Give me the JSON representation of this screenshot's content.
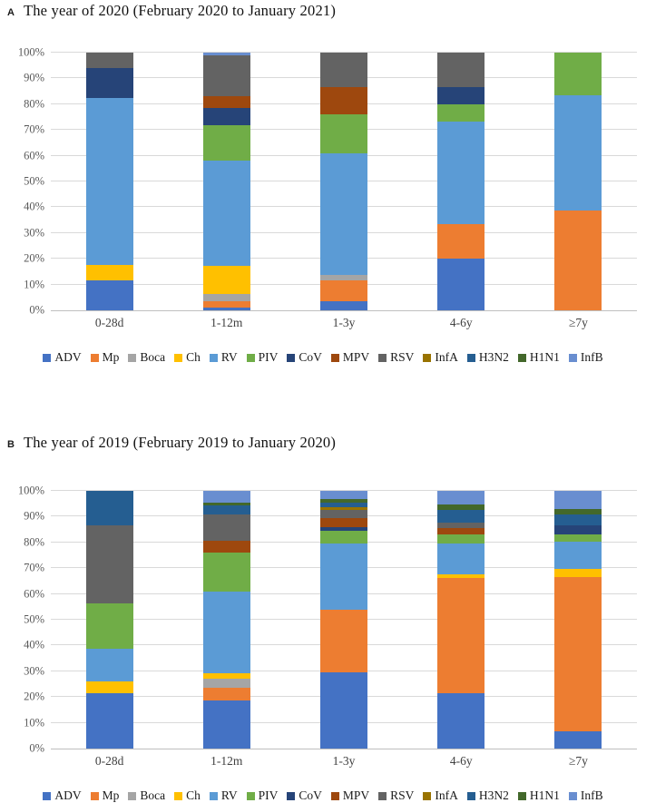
{
  "figure": {
    "background": "#ffffff"
  },
  "chart_data": [
    {
      "type": "bar",
      "stacked": true,
      "units": "percent",
      "panel_label": "A",
      "title": "The year of 2020 (February 2020 to January 2021)",
      "categories": [
        "0-28d",
        "1-12m",
        "1-3y",
        "4-6y",
        "≥7y"
      ],
      "xlabel": "",
      "ylabel": "",
      "ylim": [
        0,
        100
      ],
      "grid": true,
      "legend_position": "bottom",
      "y_ticks": [
        "100%",
        "90%",
        "80%",
        "70%",
        "60%",
        "50%",
        "40%",
        "30%",
        "20%",
        "10%",
        "0%"
      ],
      "series": [
        {
          "name": "ADV",
          "color": "#4472C4",
          "values": [
            11.8,
            1.2,
            3.5,
            20.0,
            0
          ]
        },
        {
          "name": "Mp",
          "color": "#ED7D31",
          "values": [
            0,
            2.5,
            8.0,
            13.3,
            38.9
          ]
        },
        {
          "name": "Boca",
          "color": "#A5A5A5",
          "values": [
            0,
            2.5,
            2.4,
            0,
            0
          ]
        },
        {
          "name": "Ch",
          "color": "#FFC000",
          "values": [
            5.9,
            11.0,
            0,
            0,
            0
          ]
        },
        {
          "name": "RV",
          "color": "#5B9BD5",
          "values": [
            64.7,
            41.0,
            47.0,
            40.0,
            44.4
          ]
        },
        {
          "name": "PIV",
          "color": "#70AD47",
          "values": [
            0,
            13.5,
            15.3,
            6.7,
            16.7
          ]
        },
        {
          "name": "CoV",
          "color": "#264478",
          "values": [
            11.8,
            7.0,
            0,
            6.7,
            0
          ]
        },
        {
          "name": "MPV",
          "color": "#9E480E",
          "values": [
            0,
            4.3,
            10.6,
            0,
            0
          ]
        },
        {
          "name": "RSV",
          "color": "#636363",
          "values": [
            5.9,
            16.0,
            13.2,
            13.3,
            0
          ]
        },
        {
          "name": "InfA",
          "color": "#997300",
          "values": [
            0,
            0,
            0,
            0,
            0
          ]
        },
        {
          "name": "H3N2",
          "color": "#255E91",
          "values": [
            0,
            0,
            0,
            0,
            0
          ]
        },
        {
          "name": "H1N1",
          "color": "#43682B",
          "values": [
            0,
            0,
            0,
            0,
            0
          ]
        },
        {
          "name": "InfB",
          "color": "#698ED0",
          "values": [
            0,
            1.0,
            0,
            0,
            0
          ]
        }
      ]
    },
    {
      "type": "bar",
      "stacked": true,
      "units": "percent",
      "panel_label": "B",
      "title": "The year of 2019 (February 2019 to January 2020)",
      "categories": [
        "0-28d",
        "1-12m",
        "1-3y",
        "4-6y",
        "≥7y"
      ],
      "xlabel": "",
      "ylabel": "",
      "ylim": [
        0,
        100
      ],
      "grid": true,
      "legend_position": "bottom",
      "y_ticks": [
        "100%",
        "90%",
        "80%",
        "70%",
        "60%",
        "50%",
        "40%",
        "30%",
        "20%",
        "10%",
        "0%"
      ],
      "series": [
        {
          "name": "ADV",
          "color": "#4472C4",
          "values": [
            21.5,
            18.8,
            29.6,
            21.4,
            6.7
          ]
        },
        {
          "name": "Mp",
          "color": "#ED7D31",
          "values": [
            0,
            4.7,
            24.2,
            45.0,
            59.9
          ]
        },
        {
          "name": "Boca",
          "color": "#A5A5A5",
          "values": [
            0,
            3.8,
            0,
            0,
            0
          ]
        },
        {
          "name": "Ch",
          "color": "#FFC000",
          "values": [
            4.4,
            2.1,
            0,
            1.2,
            3.1
          ]
        },
        {
          "name": "RV",
          "color": "#5B9BD5",
          "values": [
            12.8,
            31.5,
            25.8,
            12.1,
            10.6
          ]
        },
        {
          "name": "PIV",
          "color": "#70AD47",
          "values": [
            17.8,
            15.3,
            4.8,
            3.4,
            2.8
          ]
        },
        {
          "name": "CoV",
          "color": "#264478",
          "values": [
            0,
            0,
            1.5,
            0,
            3.3
          ]
        },
        {
          "name": "MPV",
          "color": "#9E480E",
          "values": [
            0,
            4.7,
            3.5,
            2.5,
            0
          ]
        },
        {
          "name": "RSV",
          "color": "#636363",
          "values": [
            30.1,
            10.2,
            3.2,
            2.3,
            0
          ]
        },
        {
          "name": "InfA",
          "color": "#997300",
          "values": [
            0,
            0,
            1.2,
            0,
            0
          ]
        },
        {
          "name": "H3N2",
          "color": "#255E91",
          "values": [
            13.4,
            3.5,
            1.5,
            4.7,
            4.5
          ]
        },
        {
          "name": "H1N1",
          "color": "#43682B",
          "values": [
            0,
            0.8,
            1.5,
            2.3,
            2.0
          ]
        },
        {
          "name": "InfB",
          "color": "#698ED0",
          "values": [
            0,
            4.7,
            3.2,
            5.2,
            7.0
          ]
        }
      ]
    }
  ]
}
